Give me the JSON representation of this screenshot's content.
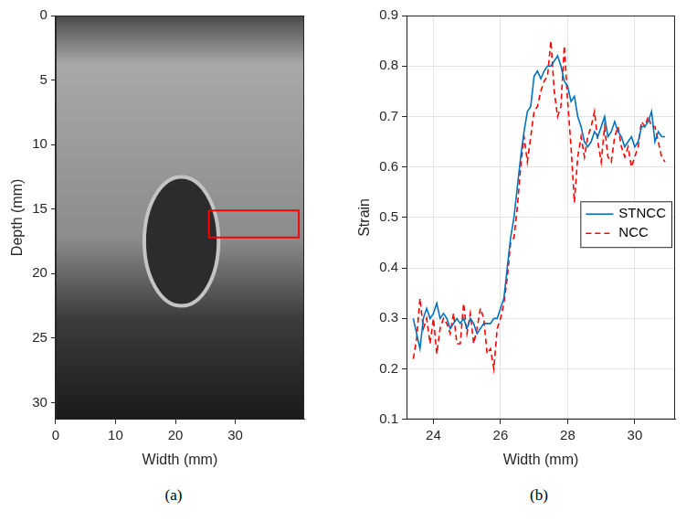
{
  "chart_data": [
    {
      "type": "image",
      "caption": "(a)",
      "x_label": "Width (mm)",
      "y_label": "Depth (mm)",
      "xlim": [
        0,
        41.5
      ],
      "ylim": [
        0,
        31.3
      ],
      "xticks": [
        0,
        10,
        20,
        30
      ],
      "yticks": [
        0,
        5,
        10,
        15,
        20,
        25,
        30
      ],
      "grid": false,
      "inclusion": {
        "center": [
          21,
          17.5
        ],
        "radius": [
          6.2,
          5
        ]
      },
      "annotations": [
        {
          "shape": "rectangle",
          "x": [
            25.6,
            40.6
          ],
          "y": [
            15.1,
            17.2
          ],
          "color": "#ff0000"
        }
      ]
    },
    {
      "type": "line",
      "caption": "(b)",
      "x_label": "Width (mm)",
      "y_label": "Strain",
      "xlim": [
        23.2,
        31.2
      ],
      "ylim": [
        0.1,
        0.9
      ],
      "xticks": [
        24,
        26,
        28,
        30
      ],
      "yticks": [
        0.1,
        0.2,
        0.3,
        0.4,
        0.5,
        0.6,
        0.7,
        0.8,
        0.9
      ],
      "grid": true,
      "legend": "right",
      "x": [
        23.4,
        23.5,
        23.6,
        23.7,
        23.8,
        23.9,
        24.0,
        24.1,
        24.2,
        24.3,
        24.4,
        24.5,
        24.6,
        24.7,
        24.8,
        24.9,
        25.0,
        25.1,
        25.2,
        25.3,
        25.4,
        25.5,
        25.6,
        25.7,
        25.8,
        25.9,
        26.0,
        26.1,
        26.2,
        26.3,
        26.4,
        26.5,
        26.6,
        26.7,
        26.8,
        26.9,
        27.0,
        27.1,
        27.2,
        27.3,
        27.4,
        27.5,
        27.6,
        27.7,
        27.8,
        27.9,
        28.0,
        28.1,
        28.2,
        28.3,
        28.4,
        28.5,
        28.6,
        28.7,
        28.8,
        28.9,
        29.0,
        29.1,
        29.2,
        29.3,
        29.4,
        29.5,
        29.6,
        29.7,
        29.8,
        29.9,
        30.0,
        30.1,
        30.2,
        30.3,
        30.4,
        30.5,
        30.6,
        30.7,
        30.8,
        30.9
      ],
      "series": [
        {
          "name": "STNCC",
          "color": "#0072bd",
          "line_style": "solid",
          "values": [
            0.3,
            0.27,
            0.24,
            0.3,
            0.32,
            0.3,
            0.31,
            0.33,
            0.3,
            0.31,
            0.3,
            0.28,
            0.29,
            0.3,
            0.29,
            0.3,
            0.28,
            0.3,
            0.29,
            0.27,
            0.28,
            0.29,
            0.29,
            0.29,
            0.3,
            0.3,
            0.32,
            0.34,
            0.4,
            0.46,
            0.5,
            0.56,
            0.62,
            0.67,
            0.71,
            0.72,
            0.78,
            0.79,
            0.775,
            0.79,
            0.8,
            0.8,
            0.81,
            0.82,
            0.8,
            0.77,
            0.76,
            0.73,
            0.74,
            0.7,
            0.68,
            0.65,
            0.64,
            0.65,
            0.67,
            0.66,
            0.68,
            0.7,
            0.66,
            0.67,
            0.69,
            0.67,
            0.66,
            0.64,
            0.65,
            0.66,
            0.64,
            0.65,
            0.68,
            0.68,
            0.69,
            0.71,
            0.65,
            0.67,
            0.66,
            0.66
          ]
        },
        {
          "name": "NCC",
          "color": "#ff0000",
          "line_style": "dashed",
          "values": [
            0.22,
            0.26,
            0.34,
            0.28,
            0.3,
            0.25,
            0.3,
            0.23,
            0.28,
            0.3,
            0.29,
            0.27,
            0.31,
            0.25,
            0.25,
            0.33,
            0.27,
            0.31,
            0.25,
            0.28,
            0.32,
            0.3,
            0.23,
            0.24,
            0.2,
            0.28,
            0.3,
            0.33,
            0.38,
            0.45,
            0.46,
            0.52,
            0.6,
            0.66,
            0.61,
            0.66,
            0.71,
            0.72,
            0.75,
            0.77,
            0.78,
            0.85,
            0.75,
            0.7,
            0.72,
            0.84,
            0.73,
            0.64,
            0.53,
            0.62,
            0.66,
            0.62,
            0.66,
            0.68,
            0.71,
            0.65,
            0.61,
            0.68,
            0.62,
            0.61,
            0.66,
            0.68,
            0.64,
            0.62,
            0.64,
            0.6,
            0.62,
            0.64,
            0.69,
            0.68,
            0.7,
            0.68,
            0.68,
            0.65,
            0.62,
            0.61
          ]
        }
      ]
    }
  ]
}
